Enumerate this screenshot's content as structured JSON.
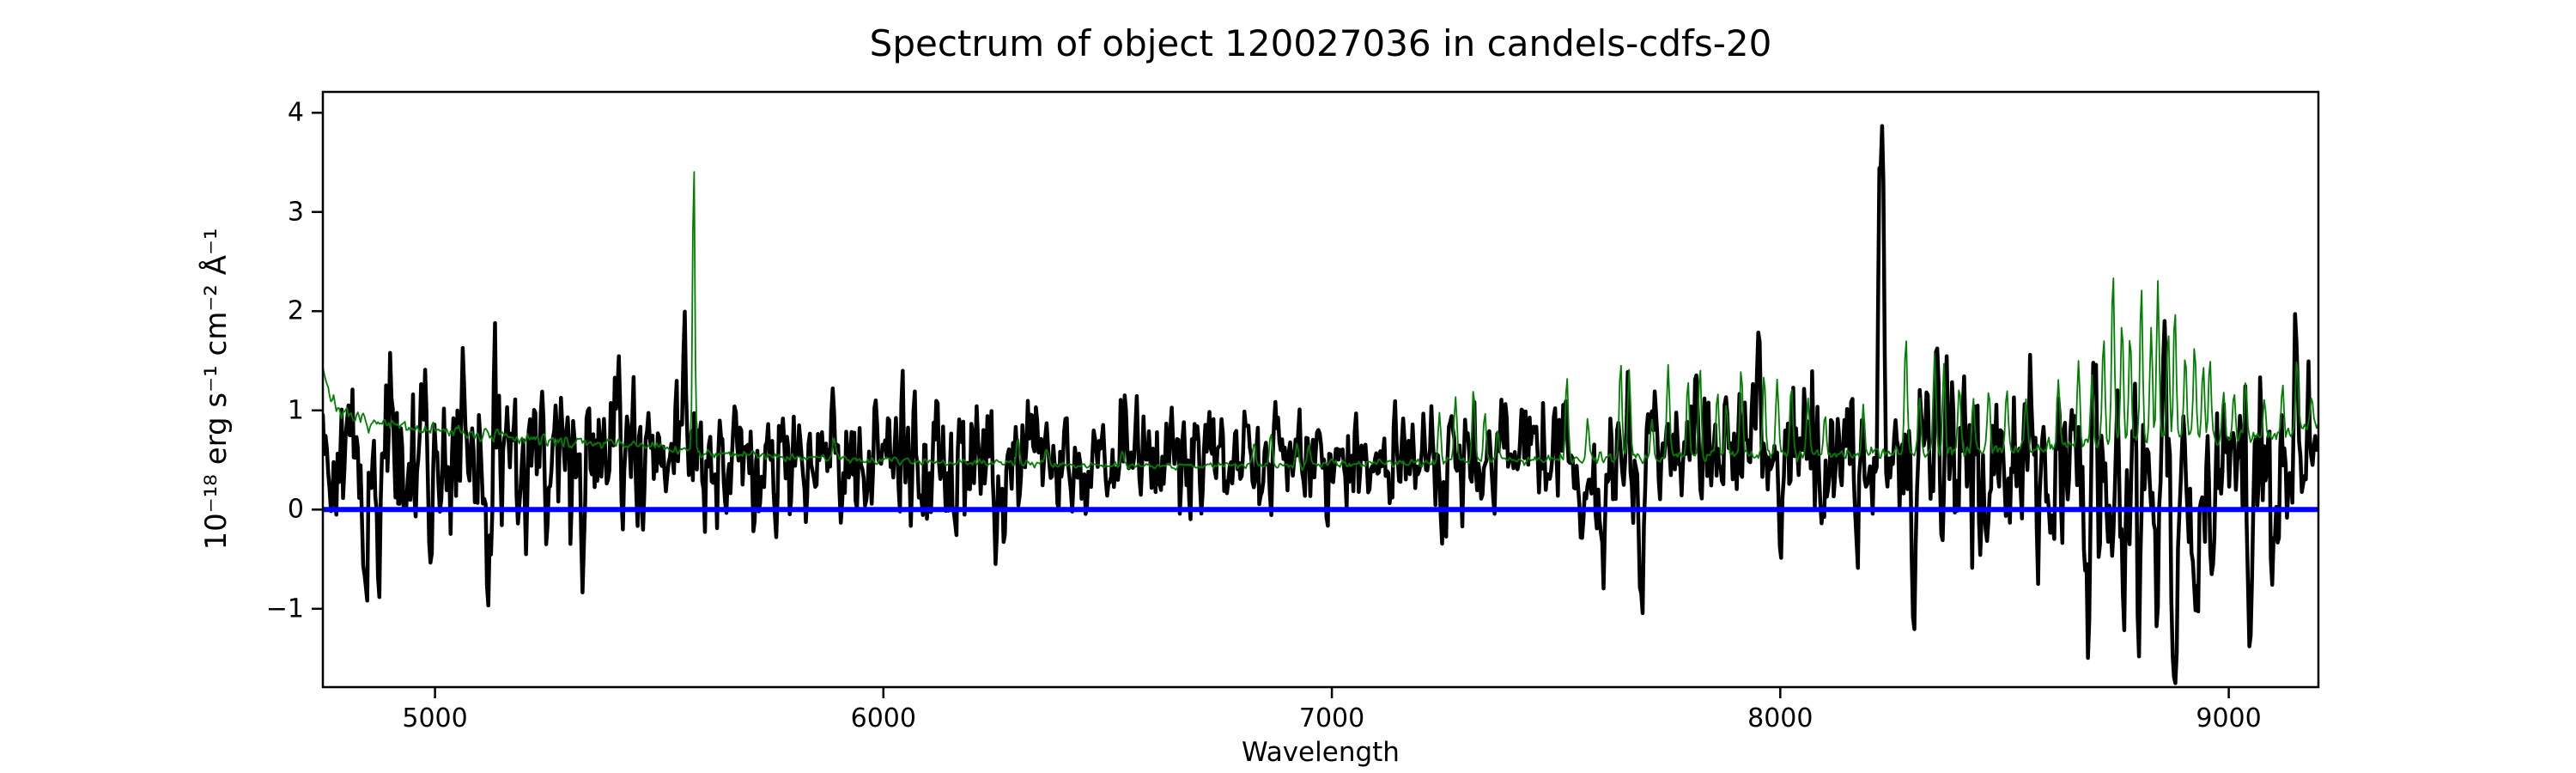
{
  "figure": {
    "background_color": "#ffffff",
    "axes_color": "#000000"
  },
  "chart_data": {
    "type": "line",
    "title": "Spectrum of object 120027036 in candels-cdfs-20",
    "xlabel": "Wavelength",
    "ylabel": "10⁻¹⁸ erg s⁻¹ cm⁻² Å⁻¹",
    "xlim": [
      4750,
      9200
    ],
    "ylim": [
      -1.79,
      4.21
    ],
    "grid": false,
    "legend": "none",
    "xticks": {
      "values": [
        5000,
        6000,
        7000,
        8000,
        9000
      ],
      "labels": [
        "5000",
        "6000",
        "7000",
        "8000",
        "9000"
      ]
    },
    "yticks": {
      "values": [
        -1,
        0,
        1,
        2,
        3,
        4
      ],
      "labels": [
        "−1",
        "0",
        "1",
        "2",
        "3",
        "4"
      ]
    },
    "notable_features": {
      "strong_black_emission_line": {
        "wavelength": 8225,
        "peak_flux": 3.9
      },
      "strong_green_sky_line": {
        "wavelength": 5577,
        "peak_flux": 3.6
      },
      "green_sky_line_forest": {
        "wavelength_range": [
          8600,
          9000
        ],
        "peak_flux": 2.4
      },
      "deep_negative_residuals": {
        "wavelength_range": [
          8680,
          8930
        ],
        "min_flux": -1.6
      }
    },
    "series": [
      {
        "name": "black-noisy-spectrum",
        "type": "noisy-line",
        "color": "#000000",
        "linewidth": 4.5,
        "seed": 42,
        "step": 3,
        "smooth": [
          0.85,
          0.5
        ],
        "baseline": [
          [
            4750,
            0.6
          ],
          [
            5000,
            0.52
          ],
          [
            5300,
            0.56
          ],
          [
            5600,
            0.55
          ],
          [
            6000,
            0.55
          ],
          [
            6400,
            0.52
          ],
          [
            6800,
            0.5
          ],
          [
            7200,
            0.52
          ],
          [
            7600,
            0.55
          ],
          [
            8000,
            0.6
          ],
          [
            8250,
            0.55
          ],
          [
            8600,
            0.5
          ],
          [
            9000,
            0.52
          ],
          [
            9200,
            0.55
          ]
        ],
        "sigma": [
          [
            4750,
            0.42
          ],
          [
            5200,
            0.4
          ],
          [
            5600,
            0.34
          ],
          [
            6000,
            0.33
          ],
          [
            6400,
            0.28
          ],
          [
            6800,
            0.26
          ],
          [
            7200,
            0.28
          ],
          [
            7600,
            0.33
          ],
          [
            8000,
            0.36
          ],
          [
            8300,
            0.4
          ],
          [
            8550,
            0.42
          ],
          [
            8700,
            0.5
          ],
          [
            8950,
            0.48
          ],
          [
            9100,
            0.42
          ],
          [
            9200,
            0.36
          ]
        ],
        "features": [
          [
            4843,
            -1.45,
            5
          ],
          [
            4878,
            -0.9,
            4
          ],
          [
            4990,
            -1.3,
            5
          ],
          [
            5062,
            0.95,
            4
          ],
          [
            5120,
            -1.4,
            6
          ],
          [
            5205,
            -0.95,
            4
          ],
          [
            5330,
            -0.8,
            4
          ],
          [
            5410,
            0.7,
            4
          ],
          [
            5465,
            -0.85,
            4
          ],
          [
            5560,
            0.6,
            4
          ],
          [
            5760,
            -0.7,
            4
          ],
          [
            5940,
            -0.6,
            4
          ],
          [
            6160,
            -0.5,
            4
          ],
          [
            6250,
            -0.9,
            5
          ],
          [
            6420,
            -0.6,
            4
          ],
          [
            6540,
            0.6,
            4
          ],
          [
            6640,
            0.55,
            4
          ],
          [
            6840,
            -0.55,
            4
          ],
          [
            7080,
            -0.5,
            4
          ],
          [
            7245,
            -0.7,
            4
          ],
          [
            7560,
            -0.9,
            5
          ],
          [
            7605,
            -1.0,
            5
          ],
          [
            7690,
            -1.05,
            5
          ],
          [
            7800,
            0.6,
            4
          ],
          [
            7950,
            0.85,
            5
          ],
          [
            7998,
            -0.8,
            4
          ],
          [
            8090,
            -0.7,
            4
          ],
          [
            8221,
            2.2,
            2.5
          ],
          [
            8229,
            3.28,
            3.5
          ],
          [
            8298,
            -1.35,
            5
          ],
          [
            8360,
            -0.8,
            4
          ],
          [
            8461,
            -1.05,
            4
          ],
          [
            8574,
            -1.05,
            4
          ],
          [
            8607,
            -0.9,
            4
          ],
          [
            8685,
            -1.75,
            5
          ],
          [
            8768,
            -1.35,
            5
          ],
          [
            8801,
            -1.8,
            5
          ],
          [
            8839,
            -2.1,
            5
          ],
          [
            8858,
            0.6,
            3
          ],
          [
            8880,
            -2.15,
            5
          ],
          [
            8924,
            -1.55,
            5
          ],
          [
            8962,
            -1.1,
            4
          ],
          [
            9047,
            -1.3,
            5
          ],
          [
            9100,
            -0.9,
            4
          ],
          [
            9152,
            0.7,
            4
          ],
          [
            9178,
            0.6,
            3
          ]
        ]
      },
      {
        "name": "thin-green-line",
        "type": "noisy-line",
        "color": "#007f00",
        "linewidth": 1.8,
        "seed": 7,
        "step": 3,
        "smooth": [
          0.8,
          0.45
        ],
        "baseline": [
          [
            4750,
            1.45
          ],
          [
            4768,
            1.12
          ],
          [
            4800,
            0.93
          ],
          [
            4880,
            0.85
          ],
          [
            5000,
            0.8
          ],
          [
            5150,
            0.73
          ],
          [
            5300,
            0.68
          ],
          [
            5450,
            0.65
          ],
          [
            5600,
            0.58
          ],
          [
            5800,
            0.53
          ],
          [
            6000,
            0.5
          ],
          [
            6300,
            0.46
          ],
          [
            6700,
            0.44
          ],
          [
            7000,
            0.46
          ],
          [
            7300,
            0.49
          ],
          [
            7600,
            0.52
          ],
          [
            7900,
            0.55
          ],
          [
            8200,
            0.57
          ],
          [
            8500,
            0.6
          ],
          [
            8700,
            0.66
          ],
          [
            8900,
            0.7
          ],
          [
            9100,
            0.74
          ],
          [
            9200,
            0.84
          ]
        ],
        "sigma": [
          [
            4750,
            0.04
          ],
          [
            5300,
            0.03
          ],
          [
            6000,
            0.02
          ],
          [
            7000,
            0.02
          ],
          [
            8000,
            0.03
          ],
          [
            9200,
            0.04
          ]
        ],
        "features": [
          [
            5577,
            3.0,
            2.5
          ],
          [
            5890,
            0.22,
            3
          ],
          [
            6300,
            0.3,
            3
          ],
          [
            6364,
            0.16,
            3
          ],
          [
            6533,
            0.14,
            3
          ],
          [
            6827,
            0.22,
            3
          ],
          [
            6864,
            0.3,
            3
          ],
          [
            6923,
            0.22,
            3
          ],
          [
            6949,
            0.18,
            3
          ],
          [
            7240,
            0.5,
            3
          ],
          [
            7276,
            0.65,
            3
          ],
          [
            7316,
            0.72,
            3
          ],
          [
            7341,
            0.48,
            3
          ],
          [
            7370,
            0.3,
            3
          ],
          [
            7524,
            0.82,
            3
          ],
          [
            7571,
            0.42,
            3
          ],
          [
            7644,
            0.95,
            3
          ],
          [
            7663,
            0.85,
            3
          ],
          [
            7714,
            0.42,
            3
          ],
          [
            7750,
            0.95,
            3
          ],
          [
            7794,
            0.75,
            3
          ],
          [
            7821,
            0.9,
            3
          ],
          [
            7860,
            0.7,
            3
          ],
          [
            7880,
            0.52,
            3
          ],
          [
            7913,
            0.9,
            3
          ],
          [
            7964,
            0.85,
            3
          ],
          [
            7993,
            0.8,
            3
          ],
          [
            8025,
            0.68,
            3
          ],
          [
            8062,
            0.55,
            3
          ],
          [
            8100,
            0.42,
            3
          ],
          [
            8185,
            0.48,
            3
          ],
          [
            8280,
            1.18,
            3
          ],
          [
            8310,
            0.62,
            3
          ],
          [
            8344,
            0.98,
            3
          ],
          [
            8365,
            0.9,
            3
          ],
          [
            8399,
            0.65,
            3
          ],
          [
            8430,
            0.55,
            3
          ],
          [
            8465,
            0.6,
            3
          ],
          [
            8505,
            0.65,
            3
          ],
          [
            8548,
            0.5,
            3
          ],
          [
            8620,
            0.65,
            3
          ],
          [
            8665,
            0.85,
            3
          ],
          [
            8695,
            0.7,
            3
          ],
          [
            8721,
            1.05,
            3
          ],
          [
            8742,
            1.75,
            3
          ],
          [
            8762,
            1.3,
            3
          ],
          [
            8780,
            1.1,
            3
          ],
          [
            8805,
            1.55,
            3
          ],
          [
            8827,
            1.15,
            3
          ],
          [
            8842,
            1.6,
            3
          ],
          [
            8865,
            1.15,
            3
          ],
          [
            8880,
            1.35,
            3
          ],
          [
            8903,
            0.95,
            3
          ],
          [
            8924,
            0.95,
            3
          ],
          [
            8943,
            0.75,
            3
          ],
          [
            8958,
            0.8,
            3
          ],
          [
            8988,
            0.5,
            3
          ],
          [
            9012,
            0.45,
            3
          ],
          [
            9038,
            0.6,
            3
          ],
          [
            9080,
            0.45,
            3
          ],
          [
            9120,
            0.55,
            3
          ],
          [
            9152,
            0.8,
            3
          ],
          [
            9185,
            0.35,
            3
          ]
        ]
      },
      {
        "name": "blue-zero-line",
        "type": "hline",
        "y": 0,
        "color": "#0000ff",
        "linewidth": 6
      }
    ]
  }
}
